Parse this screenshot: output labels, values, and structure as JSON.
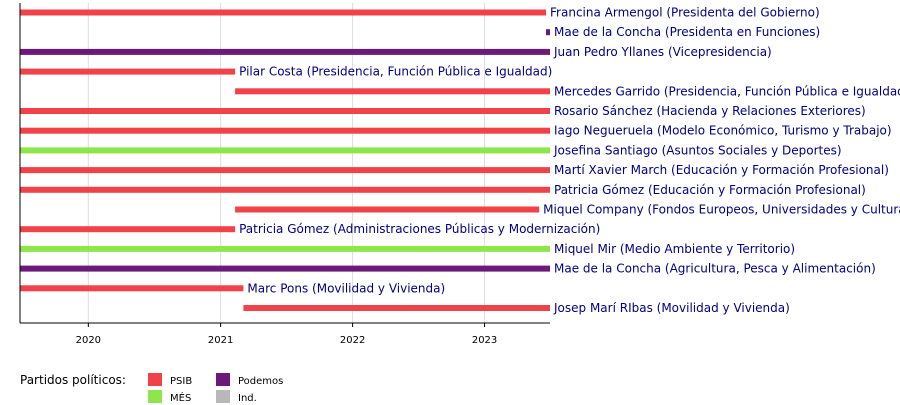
{
  "chart_data": {
    "type": "timeline",
    "x_axis": {
      "type": "date",
      "range": [
        "2019-06-26",
        "2023-07-01"
      ],
      "ticks": [
        {
          "label": "2020",
          "date": "2020-01-01"
        },
        {
          "label": "2021",
          "date": "2021-01-01"
        },
        {
          "label": "2022",
          "date": "2022-01-01"
        },
        {
          "label": "2023",
          "date": "2023-01-01"
        }
      ],
      "grid": true
    },
    "parties": {
      "PSIB": "#f1424a",
      "MÉS": "#8ee64a",
      "Podemos": "#6b1a79",
      "Ind.": "#b8b8b8"
    },
    "bars": [
      {
        "label": "Francina Armengol (Presidenta del Gobierno)",
        "party": "PSIB",
        "start": "2019-06-26",
        "end": "2023-06-20"
      },
      {
        "label": "Mae de la Concha (Presidenta en Funciones)",
        "party": "Podemos",
        "start": "2023-06-20",
        "end": "2023-07-01"
      },
      {
        "label": "Juan Pedro Yllanes (Vicepresidencia)",
        "party": "Podemos",
        "start": "2019-06-26",
        "end": "2023-07-01"
      },
      {
        "label": "Pilar Costa (Presidencia, Función Pública e Igualdad)",
        "party": "PSIB",
        "start": "2019-06-26",
        "end": "2021-02-10"
      },
      {
        "label": "Mercedes Garrido (Presidencia, Función Pública e Igualdad)",
        "party": "PSIB",
        "start": "2021-02-10",
        "end": "2023-07-01"
      },
      {
        "label": "Rosario Sánchez (Hacienda y Relaciones Exteriores)",
        "party": "PSIB",
        "start": "2019-06-26",
        "end": "2023-07-01"
      },
      {
        "label": "Iago Negueruela (Modelo Económico, Turismo y Trabajo)",
        "party": "PSIB",
        "start": "2019-06-26",
        "end": "2023-07-01"
      },
      {
        "label": "Josefina Santiago (Asuntos Sociales y Deportes)",
        "party": "MÉS",
        "start": "2019-06-26",
        "end": "2023-07-01"
      },
      {
        "label": "Martí Xavier March (Educación y Formación Profesional)",
        "party": "PSIB",
        "start": "2019-06-26",
        "end": "2023-07-01"
      },
      {
        "label": "Patricia Gómez (Educación y Formación Profesional)",
        "party": "PSIB",
        "start": "2019-06-26",
        "end": "2023-07-01"
      },
      {
        "label": "Miquel Company (Fondos Europeos, Universidades y Cultura)",
        "party": "PSIB",
        "start": "2021-02-10",
        "end": "2023-06-01"
      },
      {
        "label": "Patricia Gómez (Administraciones Públicas y Modernización)",
        "party": "PSIB",
        "start": "2019-06-26",
        "end": "2021-02-10"
      },
      {
        "label": "Miquel Mir (Medio Ambiente y Territorio)",
        "party": "MÉS",
        "start": "2019-06-26",
        "end": "2023-07-01"
      },
      {
        "label": "Mae de la Concha (Agricultura, Pesca y Alimentación)",
        "party": "Podemos",
        "start": "2019-06-26",
        "end": "2023-07-01"
      },
      {
        "label": "Marc Pons (Movilidad y Vivienda)",
        "party": "PSIB",
        "start": "2019-06-26",
        "end": "2021-03-05"
      },
      {
        "label": "Josep Marí RIbas (Movilidad y Vivienda)",
        "party": "PSIB",
        "start": "2021-03-05",
        "end": "2023-07-01"
      }
    ],
    "legend": {
      "title": "Partidos políticos:",
      "placement": "bottom-left",
      "items": [
        {
          "party": "PSIB",
          "label": "PSIB"
        },
        {
          "party": "MÉS",
          "label": "MÉS"
        },
        {
          "party": "Podemos",
          "label": "Podemos"
        },
        {
          "party": "Ind.",
          "label": "Ind."
        }
      ]
    }
  }
}
